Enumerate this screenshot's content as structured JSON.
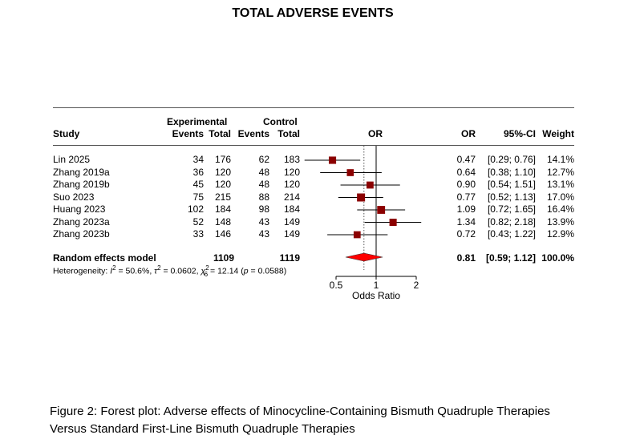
{
  "chart_data": {
    "type": "forest",
    "title": "TOTAL ADVERSE EVENTS",
    "headers": {
      "study": "Study",
      "experimental": "Experimental",
      "control": "Control",
      "events": "Events",
      "total": "Total",
      "or_plot": "OR",
      "or": "OR",
      "ci": "95%-CI",
      "weight": "Weight"
    },
    "studies": [
      {
        "name": "Lin 2025",
        "e_events": "34",
        "e_total": "176",
        "c_events": "62",
        "c_total": "183",
        "or": 0.47,
        "lo": 0.29,
        "hi": 0.76,
        "or_text": "0.47",
        "ci_text": "[0.29; 0.76]",
        "weight_text": "14.1%",
        "weight": 14.1
      },
      {
        "name": "Zhang 2019a",
        "e_events": "36",
        "e_total": "120",
        "c_events": "48",
        "c_total": "120",
        "or": 0.64,
        "lo": 0.38,
        "hi": 1.1,
        "or_text": "0.64",
        "ci_text": "[0.38; 1.10]",
        "weight_text": "12.7%",
        "weight": 12.7
      },
      {
        "name": "Zhang 2019b",
        "e_events": "45",
        "e_total": "120",
        "c_events": "48",
        "c_total": "120",
        "or": 0.9,
        "lo": 0.54,
        "hi": 1.51,
        "or_text": "0.90",
        "ci_text": "[0.54; 1.51]",
        "weight_text": "13.1%",
        "weight": 13.1
      },
      {
        "name": "Suo 2023",
        "e_events": "75",
        "e_total": "215",
        "c_events": "88",
        "c_total": "214",
        "or": 0.77,
        "lo": 0.52,
        "hi": 1.13,
        "or_text": "0.77",
        "ci_text": "[0.52; 1.13]",
        "weight_text": "17.0%",
        "weight": 17.0
      },
      {
        "name": "Huang 2023",
        "e_events": "102",
        "e_total": "184",
        "c_events": "98",
        "c_total": "184",
        "or": 1.09,
        "lo": 0.72,
        "hi": 1.65,
        "or_text": "1.09",
        "ci_text": "[0.72; 1.65]",
        "weight_text": "16.4%",
        "weight": 16.4
      },
      {
        "name": "Zhang 2023a",
        "e_events": "52",
        "e_total": "148",
        "c_events": "43",
        "c_total": "149",
        "or": 1.34,
        "lo": 0.82,
        "hi": 2.18,
        "or_text": "1.34",
        "ci_text": "[0.82; 2.18]",
        "weight_text": "13.9%",
        "weight": 13.9
      },
      {
        "name": "Zhang 2023b",
        "e_events": "33",
        "e_total": "146",
        "c_events": "43",
        "c_total": "149",
        "or": 0.72,
        "lo": 0.43,
        "hi": 1.22,
        "or_text": "0.72",
        "ci_text": "[0.43; 1.22]",
        "weight_text": "12.9%",
        "weight": 12.9
      }
    ],
    "pooled": {
      "name": "Random effects model",
      "e_total": "1109",
      "c_total": "1119",
      "or": 0.81,
      "lo": 0.59,
      "hi": 1.12,
      "or_text": "0.81",
      "ci_text": "[0.59; 1.12]",
      "weight_text": "100.0%"
    },
    "heterogeneity": {
      "label": "Heterogeneity: ",
      "i2_text": " = 50.6%, ",
      "tau2_text": " = 0.0602, ",
      "chi2_text": " = 12.14 (",
      "p_text": " = 0.0588)",
      "df": "6"
    },
    "x_axis": {
      "scale": "log",
      "ticks": [
        0.5,
        1,
        2
      ],
      "tick_labels": [
        "0.5",
        "1",
        "2"
      ],
      "label": "Odds Ratio"
    },
    "colors": {
      "square": "#8b0000",
      "diamond": "#ff0000",
      "null_line": "#000000",
      "pooled_line": "#555555"
    }
  },
  "caption": "Figure 2: Forest plot: Adverse effects of Minocycline-Containing Bismuth Quadruple Therapies Versus Standard First-Line Bismuth Quadruple Therapies"
}
